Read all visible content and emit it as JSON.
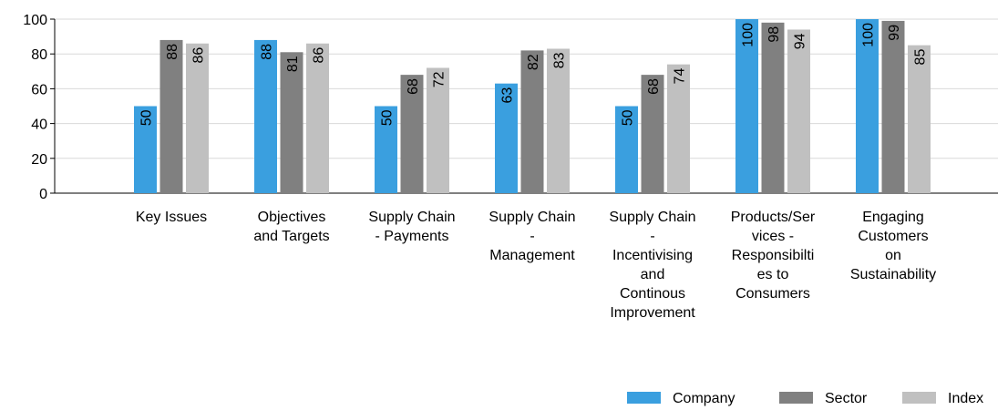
{
  "chart_data": {
    "type": "bar",
    "categories": [
      "Key Issues",
      "Objectives\nand Targets",
      "Supply Chain\n- Payments",
      "Supply Chain\n-\nManagement",
      "Supply Chain\n-\nIncentivising\nand\nContinous\nImprovement",
      "Products/Ser\nvices -\nResponsibilti\nes to\nConsumers",
      "Engaging\nCustomers\non\nSustainability"
    ],
    "series": [
      {
        "name": "Company",
        "color": "#3a9fdf",
        "values": [
          50,
          88,
          50,
          63,
          50,
          100,
          100
        ]
      },
      {
        "name": "Sector",
        "color": "#808080",
        "values": [
          88,
          81,
          68,
          82,
          68,
          98,
          99
        ]
      },
      {
        "name": "Index",
        "color": "#c0c0c0",
        "values": [
          86,
          86,
          72,
          83,
          74,
          94,
          85
        ]
      }
    ],
    "ylim": [
      0,
      100
    ],
    "yticks": [
      0,
      20,
      40,
      60,
      80,
      100
    ],
    "grid": true
  }
}
